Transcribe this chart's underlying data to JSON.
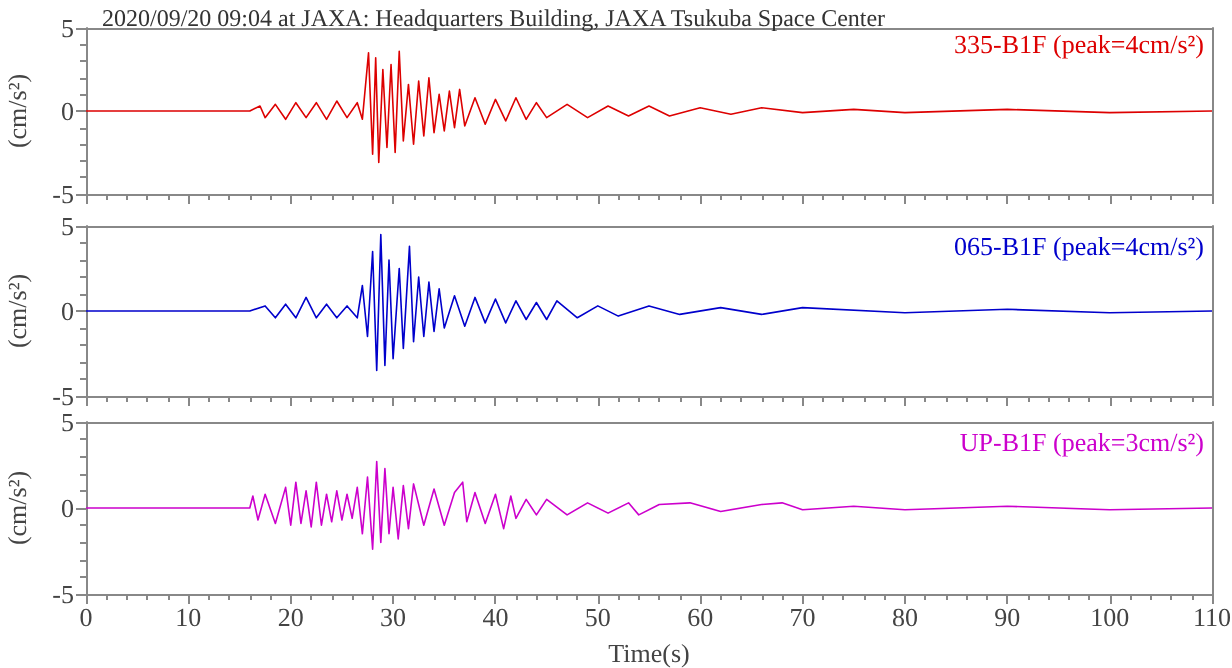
{
  "chart_data": [
    {
      "type": "line",
      "title": "2020/09/20 09:04 at JAXA: Headquarters Building, JAXA Tsukuba Space Center",
      "ylabel": "(cm/s²)",
      "xlim": [
        0,
        110
      ],
      "xticks": [
        0,
        10,
        20,
        30,
        40,
        50,
        60,
        70,
        80,
        90,
        100,
        110
      ],
      "ylim": [
        -5,
        5
      ],
      "yticks": [
        -5,
        0,
        5
      ],
      "tick_labels": "y",
      "legend": "top right",
      "series": [
        {
          "name": "335-B1F (peak=4cm/s²)",
          "color": "#dd0000",
          "x": [
            0,
            16,
            17,
            17.5,
            18.5,
            19.5,
            20.5,
            21.5,
            22.5,
            23.5,
            24.5,
            25.5,
            26.5,
            27,
            27.6,
            28,
            28.3,
            28.6,
            29,
            29.4,
            29.8,
            30.2,
            30.6,
            31,
            31.5,
            32,
            32.5,
            33,
            33.5,
            34,
            34.5,
            35,
            35.5,
            36,
            36.5,
            37,
            38,
            39,
            40,
            41,
            42,
            43,
            44,
            45,
            47,
            49,
            51,
            53,
            55,
            57,
            60,
            63,
            66,
            70,
            75,
            80,
            90,
            100,
            110
          ],
          "values": [
            0,
            0,
            0.3,
            -0.4,
            0.4,
            -0.5,
            0.5,
            -0.4,
            0.5,
            -0.5,
            0.6,
            -0.4,
            0.5,
            -0.5,
            3.5,
            -2.6,
            3.2,
            -3.1,
            2.5,
            -2.2,
            2.8,
            -2.5,
            3.6,
            -1.8,
            1.6,
            -2.0,
            1.8,
            -1.5,
            2.0,
            -1.3,
            1.0,
            -1.2,
            1.2,
            -1.0,
            1.3,
            -0.9,
            0.8,
            -0.8,
            0.7,
            -0.6,
            0.8,
            -0.5,
            0.5,
            -0.4,
            0.4,
            -0.4,
            0.3,
            -0.3,
            0.3,
            -0.3,
            0.2,
            -0.2,
            0.2,
            -0.1,
            0.1,
            -0.1,
            0.1,
            -0.1,
            0
          ]
        }
      ]
    },
    {
      "type": "line",
      "ylabel": "(cm/s²)",
      "xlim": [
        0,
        110
      ],
      "xticks": [
        0,
        10,
        20,
        30,
        40,
        50,
        60,
        70,
        80,
        90,
        100,
        110
      ],
      "ylim": [
        -5,
        5
      ],
      "yticks": [
        -5,
        0,
        5
      ],
      "tick_labels": "y",
      "legend": "top right",
      "series": [
        {
          "name": "065-B1F (peak=4cm/s²)",
          "color": "#0000cc",
          "x": [
            0,
            16,
            17.5,
            18.5,
            19.5,
            20.5,
            21.5,
            22.5,
            23.5,
            24.5,
            25.5,
            26.5,
            27,
            27.5,
            28,
            28.4,
            28.8,
            29.2,
            29.6,
            30,
            30.6,
            31,
            31.6,
            32,
            32.5,
            33,
            33.5,
            34,
            34.5,
            35,
            36,
            37,
            38,
            39,
            40,
            41,
            42,
            43,
            44,
            45,
            46,
            48,
            50,
            52,
            55,
            58,
            62,
            66,
            70,
            80,
            90,
            100,
            110
          ],
          "values": [
            0,
            0,
            0.3,
            -0.4,
            0.4,
            -0.4,
            0.8,
            -0.4,
            0.4,
            -0.4,
            0.3,
            -0.4,
            1.5,
            -1.5,
            3.5,
            -3.5,
            4.5,
            -3.2,
            3,
            -2.8,
            2.5,
            -2.2,
            3.8,
            -1.8,
            2,
            -1.5,
            1.7,
            -1.2,
            1.3,
            -1,
            0.9,
            -0.9,
            0.8,
            -0.7,
            0.7,
            -0.7,
            0.6,
            -0.5,
            0.5,
            -0.5,
            0.6,
            -0.4,
            0.3,
            -0.3,
            0.3,
            -0.2,
            0.2,
            -0.2,
            0.2,
            -0.1,
            0.1,
            -0.1,
            0
          ]
        }
      ]
    },
    {
      "type": "line",
      "xlabel": "Time(s)",
      "ylabel": "(cm/s²)",
      "xlim": [
        0,
        110
      ],
      "xticks": [
        0,
        10,
        20,
        30,
        40,
        50,
        60,
        70,
        80,
        90,
        100,
        110
      ],
      "ylim": [
        -5,
        5
      ],
      "yticks": [
        -5,
        0,
        5
      ],
      "legend": "top right",
      "series": [
        {
          "name": "UP-B1F (peak=3cm/s²)",
          "color": "#cc00cc",
          "x": [
            0,
            16,
            16.3,
            16.8,
            17.5,
            18.5,
            19.5,
            20,
            20.5,
            21,
            21.5,
            22,
            22.5,
            23,
            23.5,
            24,
            24.5,
            25,
            25.5,
            26,
            26.5,
            27,
            27.5,
            28,
            28.4,
            28.8,
            29.2,
            29.6,
            30,
            30.5,
            31,
            31.5,
            32,
            33,
            34,
            35,
            36,
            36.8,
            37.2,
            38,
            39,
            40,
            40.8,
            41.5,
            42,
            43,
            44,
            45,
            47,
            49,
            51,
            53,
            54,
            56,
            59,
            62,
            66,
            68,
            70,
            75,
            80,
            90,
            100,
            110
          ],
          "values": [
            0,
            0,
            0.7,
            -0.7,
            0.8,
            -0.9,
            1.2,
            -1.0,
            1.5,
            -0.9,
            1.0,
            -1.1,
            1.5,
            -1.0,
            0.8,
            -0.8,
            1.0,
            -0.7,
            0.8,
            -0.6,
            1.2,
            -1.5,
            1.8,
            -2.4,
            2.7,
            -2.0,
            2.3,
            -1.5,
            1.2,
            -1.8,
            1.3,
            -1.2,
            1.4,
            -1.0,
            1.1,
            -1.0,
            0.9,
            1.5,
            -0.8,
            0.9,
            -0.9,
            0.8,
            -1.2,
            0.7,
            -0.6,
            0.5,
            -0.4,
            0.5,
            -0.4,
            0.3,
            -0.3,
            0.3,
            -0.4,
            0.2,
            0.3,
            -0.2,
            0.2,
            0.3,
            -0.1,
            0.1,
            -0.1,
            0.1,
            -0.1,
            0
          ]
        }
      ]
    }
  ]
}
